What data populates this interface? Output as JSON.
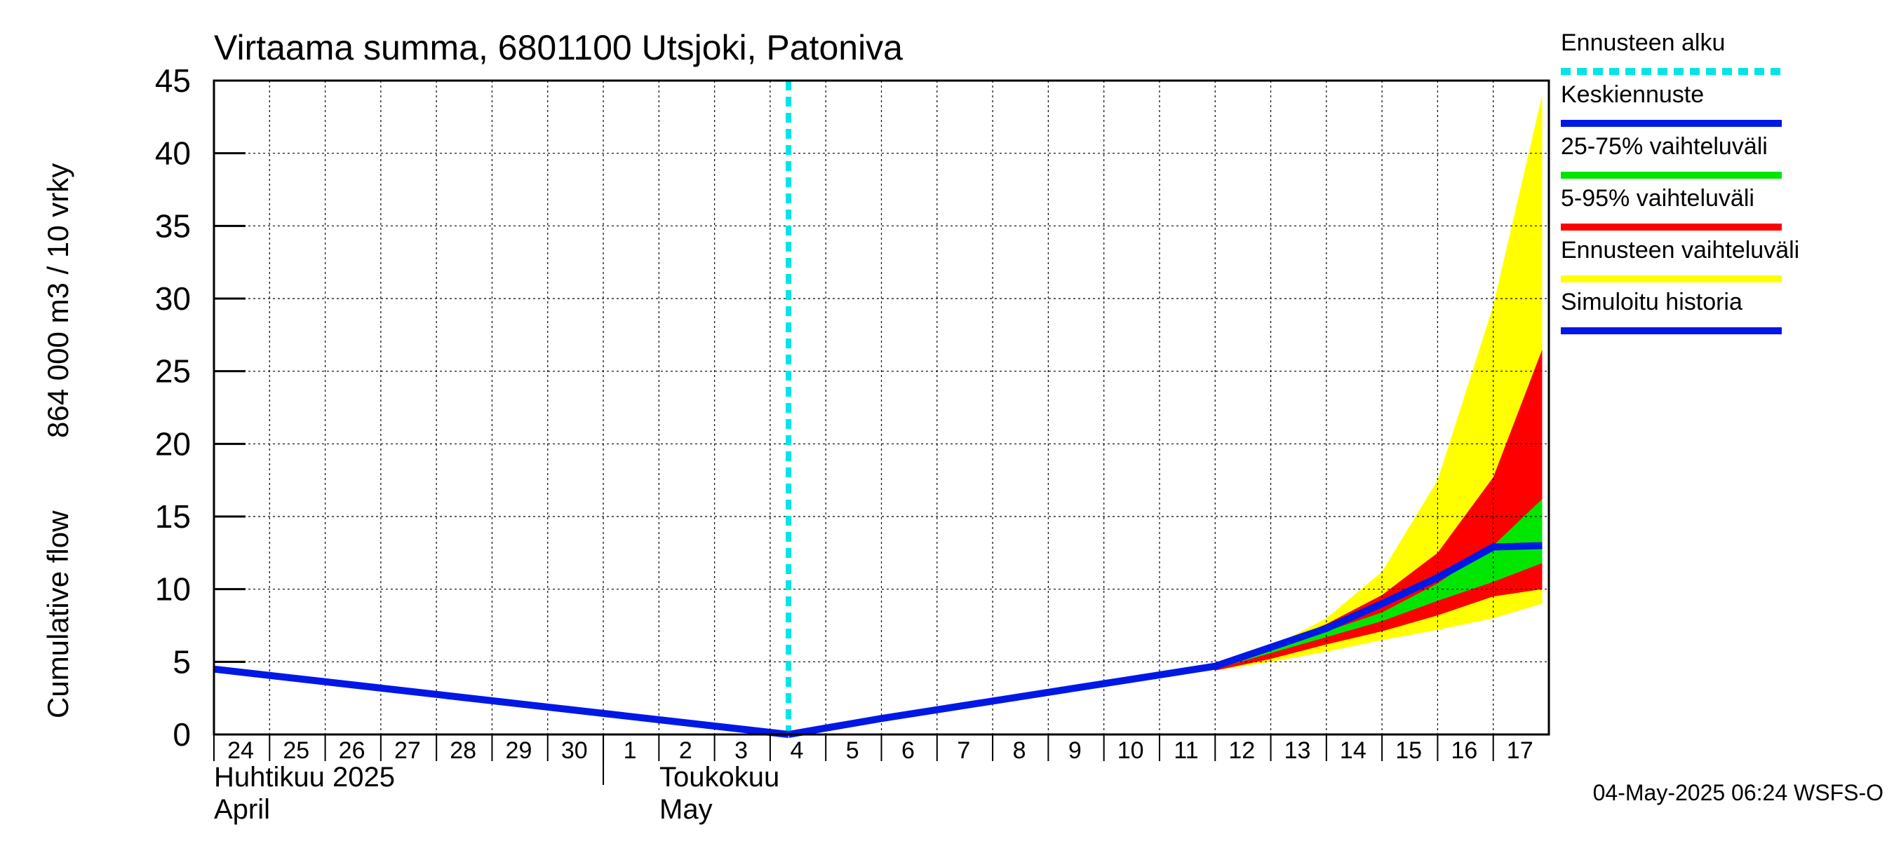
{
  "chart_data": {
    "type": "area",
    "title": "Virtaama summa, 6801100 Utsjoki, Patoniva",
    "ylabel_fi": "Cumulative flow",
    "ylabel_unit": "864 000 m3 / 10 vrky",
    "ylim": [
      0,
      45
    ],
    "yticks": [
      0,
      5,
      10,
      15,
      20,
      25,
      30,
      35,
      40,
      45
    ],
    "xlim": [
      24,
      48
    ],
    "day_tick_labels": [
      "24",
      "25",
      "26",
      "27",
      "28",
      "29",
      "30",
      "1",
      "2",
      "3",
      "4",
      "5",
      "6",
      "7",
      "8",
      "9",
      "10",
      "11",
      "12",
      "13",
      "14",
      "15",
      "16",
      "17"
    ],
    "month_labels": [
      {
        "line1": "Huhtikuu  2025",
        "line2": "April"
      },
      {
        "line1": "Toukokuu",
        "line2": "May"
      }
    ],
    "grid": true,
    "forecast_start_day": 34.33,
    "history": {
      "x": [
        24,
        34.33
      ],
      "y": [
        4.5,
        0
      ]
    },
    "forecast_mean": {
      "x": [
        34.33,
        36,
        38,
        40,
        42,
        43,
        44,
        45,
        46,
        47,
        48
      ],
      "y": [
        0,
        1.1,
        2.3,
        3.5,
        4.7,
        6.0,
        7.3,
        9.0,
        10.8,
        12.9,
        15.0
      ]
    },
    "band_5_95": {
      "x": [
        42,
        43,
        44,
        45,
        46,
        47,
        47.88
      ],
      "low": [
        4.4,
        5.2,
        6.2,
        7.1,
        8.2,
        9.5,
        10.0
      ],
      "high": [
        4.7,
        6.0,
        7.6,
        9.6,
        12.5,
        17.7,
        26.5
      ]
    },
    "band_25_75": {
      "x": [
        42,
        43,
        44,
        45,
        46,
        47,
        47.88
      ],
      "low": [
        4.5,
        5.6,
        6.7,
        7.8,
        9.2,
        10.5,
        11.8
      ],
      "high": [
        4.6,
        5.8,
        7.1,
        8.4,
        10.4,
        13.0,
        16.2
      ]
    },
    "band_forecast": {
      "x": [
        42,
        43,
        44,
        45,
        46,
        47,
        47.88
      ],
      "low": [
        4.4,
        5.0,
        5.7,
        6.5,
        7.2,
        8.0,
        9.0
      ],
      "high": [
        4.8,
        6.0,
        8.0,
        11.2,
        17.5,
        29.5,
        44.0
      ]
    },
    "legend": [
      {
        "label": "Ennusteen alku",
        "color": "#00e5e5",
        "style": "dashed"
      },
      {
        "label": "Keskiennuste",
        "color": "#0018e6",
        "style": "solid"
      },
      {
        "label": "25-75% vaihteluväli",
        "color": "#00e600",
        "style": "solid"
      },
      {
        "label": "5-95% vaihteluväli",
        "color": "#ff0000",
        "style": "solid"
      },
      {
        "label": "Ennusteen vaihteluväli",
        "color": "#ffff00",
        "style": "solid"
      },
      {
        "label": "Simuloitu historia",
        "color": "#0018e6",
        "style": "solid"
      }
    ],
    "footer": "04-May-2025 06:24 WSFS-O"
  }
}
